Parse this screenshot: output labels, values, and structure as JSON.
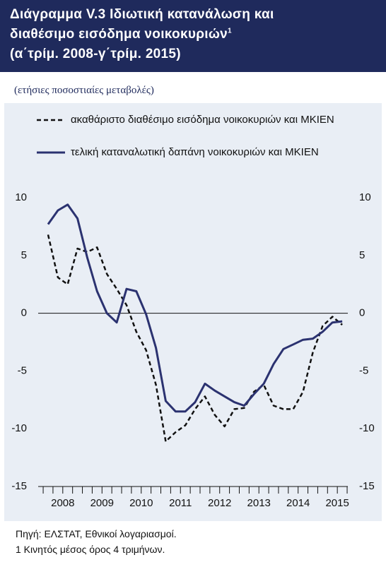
{
  "chart_data": {
    "type": "line",
    "title_lines": [
      "Διάγραμμα V.3  Ιδιωτική κατανάλωση και",
      "διαθέσιμο εισόδημα νοικοκυριών",
      "(α΄τρίμ. 2008-γ΄τρίμ. 2015)"
    ],
    "title_note": "1",
    "subtitle": "(ετήσιες ποσοστιαίες μεταβολές)",
    "categories": [
      null,
      "2008",
      null,
      null,
      null,
      "2009",
      null,
      null,
      null,
      "2010",
      null,
      null,
      null,
      "2011",
      null,
      null,
      null,
      "2012",
      null,
      null,
      null,
      "2013",
      null,
      null,
      null,
      "2014",
      null,
      null,
      null,
      "2015",
      null
    ],
    "series": [
      {
        "name": "ακαθάριστο διαθέσιμο εισόδημα νοικοκυριών και ΜΚΙΕΝ",
        "color": "#111111",
        "dashed": true,
        "values": [
          6.8,
          3.1,
          2.5,
          5.6,
          5.3,
          5.7,
          3.4,
          2.1,
          0.7,
          -1.6,
          -3.2,
          -6.2,
          -11.1,
          -10.3,
          -9.7,
          -8.3,
          -7.2,
          -8.8,
          -9.8,
          -8.3,
          -8.2,
          -6.8,
          -6.2,
          -8.0,
          -8.3,
          -8.3,
          -6.8,
          -3.4,
          -1.1,
          -0.3,
          -1.0
        ]
      },
      {
        "name": "τελική καταναλωτική δαπάνη νοικοκυριών και ΜΚΙΕΝ",
        "color": "#2b3270",
        "dashed": false,
        "values": [
          7.7,
          8.9,
          9.4,
          8.2,
          4.8,
          1.9,
          0.0,
          -0.8,
          2.1,
          1.9,
          -0.1,
          -3.0,
          -7.6,
          -8.5,
          -8.5,
          -7.7,
          -6.1,
          -6.7,
          -7.2,
          -7.7,
          -8.0,
          -7.0,
          -6.1,
          -4.4,
          -3.1,
          -2.7,
          -2.3,
          -2.2,
          -1.6,
          -0.8,
          -0.7
        ]
      }
    ],
    "ylim": [
      -15,
      10
    ],
    "yticks": [
      -15,
      -10,
      -5,
      0,
      5,
      10
    ],
    "y2lim": [
      -15,
      10
    ],
    "y2ticks": [
      -15,
      -10,
      -5,
      0,
      5,
      10
    ],
    "source": "Πηγή:  ΕΛΣΤΑΤ, Εθνικοί λογαριασμοί.",
    "footnote": "1 Κινητός μέσος όρος 4 τριμήνων."
  }
}
